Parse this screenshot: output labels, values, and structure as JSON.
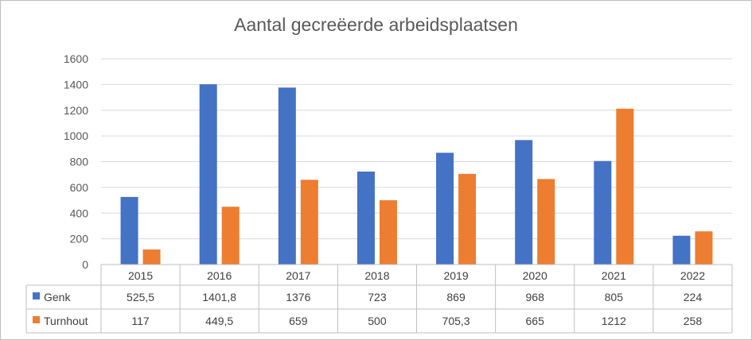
{
  "chart_data": {
    "type": "bar",
    "title": "Aantal gecreëerde arbeidsplaatsen",
    "categories": [
      "2015",
      "2016",
      "2017",
      "2018",
      "2019",
      "2020",
      "2021",
      "2022"
    ],
    "series": [
      {
        "name": "Genk",
        "color": "#4472c4",
        "values": [
          525.5,
          1401.8,
          1376,
          723,
          869,
          968,
          805,
          224
        ],
        "labels": [
          "525,5",
          "1401,8",
          "1376",
          "723",
          "869",
          "968",
          "805",
          "224"
        ]
      },
      {
        "name": "Turnhout",
        "color": "#ed7d31",
        "values": [
          117,
          449.5,
          659,
          500,
          705.3,
          665,
          1212,
          258
        ],
        "labels": [
          "117",
          "449,5",
          "659",
          "500",
          "705,3",
          "665",
          "1212",
          "258"
        ]
      }
    ],
    "yticks": [
      "0",
      "200",
      "400",
      "600",
      "800",
      "1000",
      "1200",
      "1400",
      "1600"
    ],
    "ylim": [
      0,
      1600
    ],
    "grid": true,
    "legend": "data-table"
  }
}
